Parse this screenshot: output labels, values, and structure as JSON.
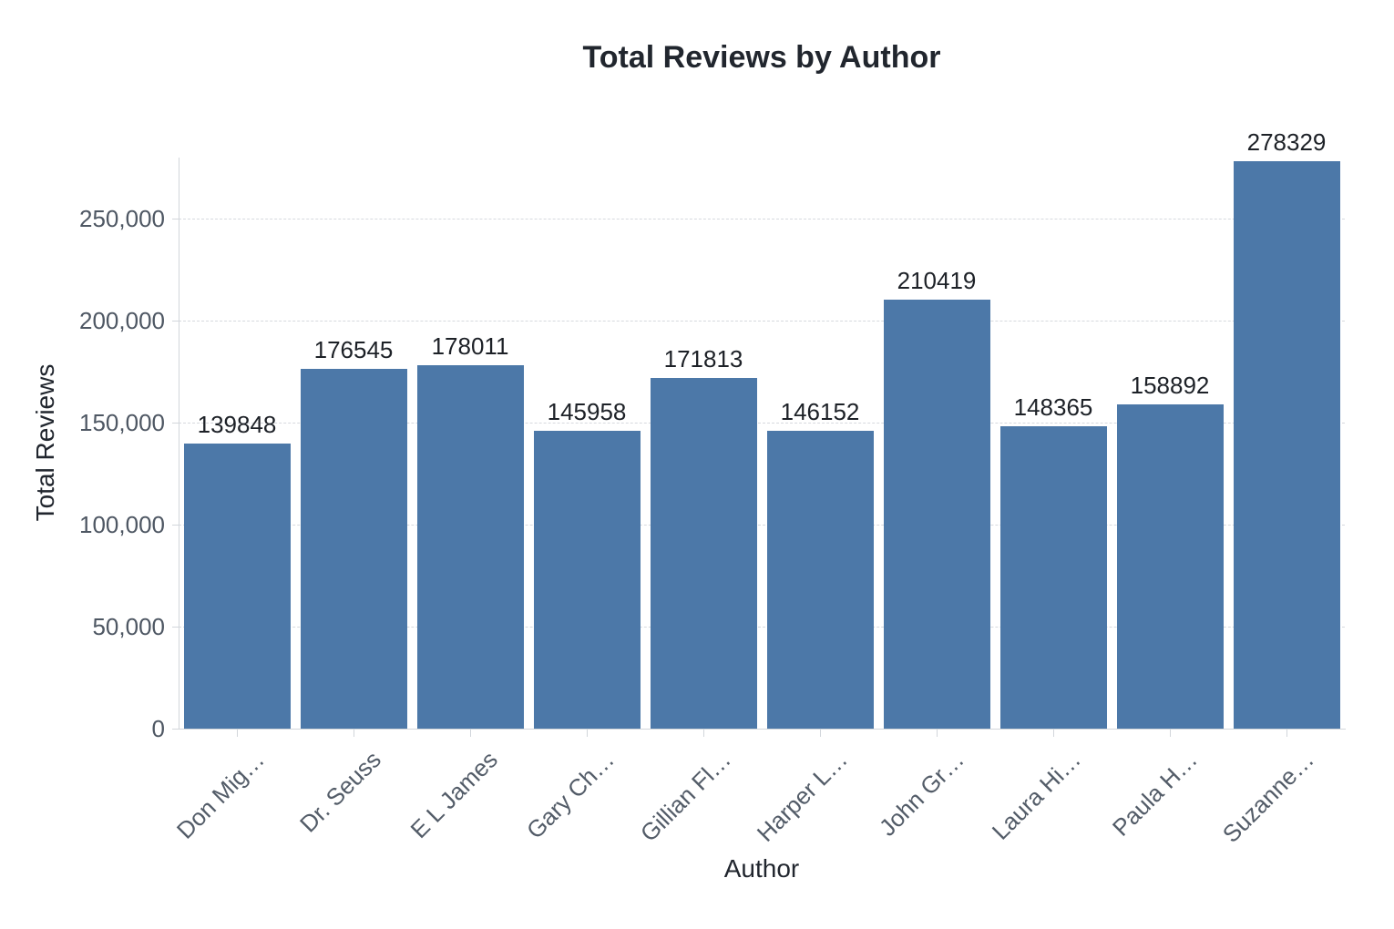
{
  "chart_data": {
    "type": "bar",
    "title": "Total Reviews by Author",
    "xlabel": "Author",
    "ylabel": "Total Reviews",
    "categories": [
      "Don Mig…",
      "Dr. Seuss",
      "E L James",
      "Gary Ch…",
      "Gillian Fl…",
      "Harper L…",
      "John Gr…",
      "Laura Hi…",
      "Paula H…",
      "Suzanne…"
    ],
    "values": [
      139848,
      176545,
      178011,
      145958,
      171813,
      146152,
      210419,
      148365,
      158892,
      278329
    ],
    "value_labels": [
      "139848",
      "176545",
      "178011",
      "145958",
      "171813",
      "146152",
      "210419",
      "148365",
      "158892",
      "278329"
    ],
    "yticks": [
      {
        "value": 0,
        "label": "0"
      },
      {
        "value": 50000,
        "label": "50,000"
      },
      {
        "value": 100000,
        "label": "100,000"
      },
      {
        "value": 150000,
        "label": "150,000"
      },
      {
        "value": 200000,
        "label": "200,000"
      },
      {
        "value": 250000,
        "label": "250,000"
      }
    ],
    "ylim": [
      0,
      280000
    ],
    "grid": true,
    "gridline_style": "dashed",
    "legend": "none",
    "bar_color": "#4c78a8"
  },
  "colors": {
    "background": "#ffffff",
    "bar": "#4c78a8",
    "gridline": "#d6d9de",
    "axis_line": "#d2d6db",
    "tick_label": "#4e5763",
    "axis_title": "#21262e",
    "chart_title": "#21262e",
    "value_label": "#1d2127"
  }
}
